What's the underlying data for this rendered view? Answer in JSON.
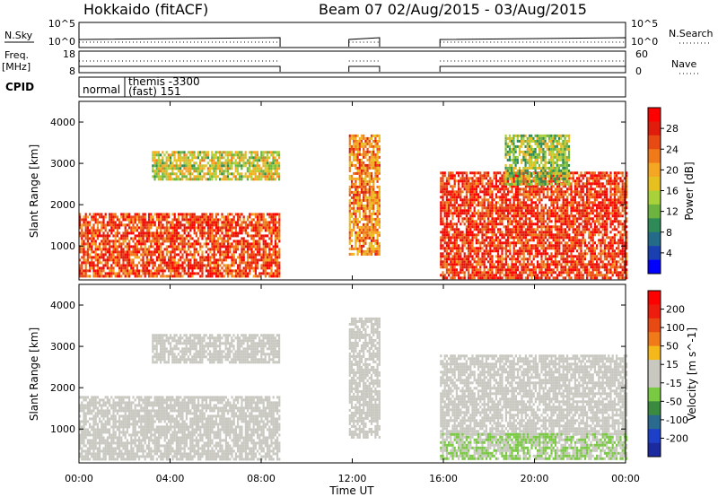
{
  "header": {
    "title": "Hokkaido (fitACF)",
    "beam_info": "Beam 07  02/Aug/2015 - 03/Aug/2015"
  },
  "params": {
    "nsky_label": "N.Sky",
    "nsky_ticks": [
      "10^5",
      "10^0"
    ],
    "nsearch_label": "N.Search",
    "freq_label_1": "Freq.",
    "freq_label_2": "[MHz]",
    "freq_ticks": [
      "18",
      "8"
    ],
    "nave_ticks": [
      "60",
      "0"
    ],
    "nave_label": "Nave",
    "cpid_label": "CPID",
    "cpid_normal": "normal",
    "cpid_themis_1": "themis -3300",
    "cpid_themis_2": "(fast) 151"
  },
  "axes": {
    "y_label": "Slant Range [km]",
    "y_ticks": [
      "4000",
      "3000",
      "2000",
      "1000"
    ],
    "x_label": "Time UT",
    "x_ticks": [
      "00:00",
      "04:00",
      "08:00",
      "12:00",
      "16:00",
      "20:00",
      "00:00"
    ]
  },
  "colorbars": {
    "power": {
      "label": "Power [dB]",
      "ticks": [
        "28",
        "24",
        "20",
        "16",
        "12",
        "8",
        "4"
      ],
      "colors": [
        "#0000ff",
        "#1a3fb0",
        "#246b8a",
        "#2e8b57",
        "#6cb33f",
        "#a8d13a",
        "#e6c020",
        "#f5a623",
        "#f07a1a",
        "#e84a14",
        "#e01c0c",
        "#ff0000"
      ]
    },
    "velocity": {
      "label": "Velocity [m s^-1]",
      "ticks": [
        "200",
        "100",
        "50",
        "15",
        "-15",
        "-50",
        "-100",
        "-200"
      ],
      "colors": [
        "#1b2a9e",
        "#1e40c8",
        "#2b6a8f",
        "#3a8a40",
        "#7ac943",
        "#c8c8c0",
        "#c8c8c0",
        "#f5b81a",
        "#f07a1a",
        "#e84a14",
        "#ee1c0c",
        "#ff0000"
      ]
    }
  },
  "chart_data": [
    {
      "type": "heatmap",
      "title": "Power",
      "xlabel": "Time UT",
      "ylabel": "Slant Range [km]",
      "x_range_hours": [
        0,
        24
      ],
      "y_range_km": [
        180,
        4500
      ],
      "colorbar_range_db": [
        0,
        32
      ],
      "data_gaps_hours": [
        [
          8.83,
          11.85
        ],
        [
          13.2,
          15.85
        ]
      ],
      "echo_regions": [
        {
          "t_start": 0.0,
          "t_end": 8.83,
          "r_min": 300,
          "r_max": 1800,
          "value": 26
        },
        {
          "t_start": 3.2,
          "t_end": 8.83,
          "r_min": 2600,
          "r_max": 3300,
          "value": 16
        },
        {
          "t_start": 11.85,
          "t_end": 13.2,
          "r_min": 800,
          "r_max": 3700,
          "value": 22
        },
        {
          "t_start": 15.85,
          "t_end": 24.0,
          "r_min": 250,
          "r_max": 2800,
          "value": 27
        },
        {
          "t_start": 18.7,
          "t_end": 21.5,
          "r_min": 2500,
          "r_max": 3700,
          "value": 14
        }
      ]
    },
    {
      "type": "heatmap",
      "title": "Velocity",
      "xlabel": "Time UT",
      "ylabel": "Slant Range [km]",
      "x_range_hours": [
        0,
        24
      ],
      "y_range_km": [
        180,
        4500
      ],
      "colorbar_range_ms": [
        -250,
        250
      ],
      "data_gaps_hours": [
        [
          8.83,
          11.85
        ],
        [
          13.2,
          15.85
        ]
      ],
      "echo_regions": [
        {
          "t_start": 0.0,
          "t_end": 8.83,
          "r_min": 300,
          "r_max": 1800,
          "value": 0
        },
        {
          "t_start": 3.2,
          "t_end": 8.83,
          "r_min": 2600,
          "r_max": 3300,
          "value": 0
        },
        {
          "t_start": 11.85,
          "t_end": 13.2,
          "r_min": 800,
          "r_max": 3700,
          "value": 10
        },
        {
          "t_start": 15.85,
          "t_end": 24.0,
          "r_min": 900,
          "r_max": 2800,
          "value": 0
        },
        {
          "t_start": 15.85,
          "t_end": 24.0,
          "r_min": 250,
          "r_max": 900,
          "value": -40
        }
      ]
    }
  ]
}
